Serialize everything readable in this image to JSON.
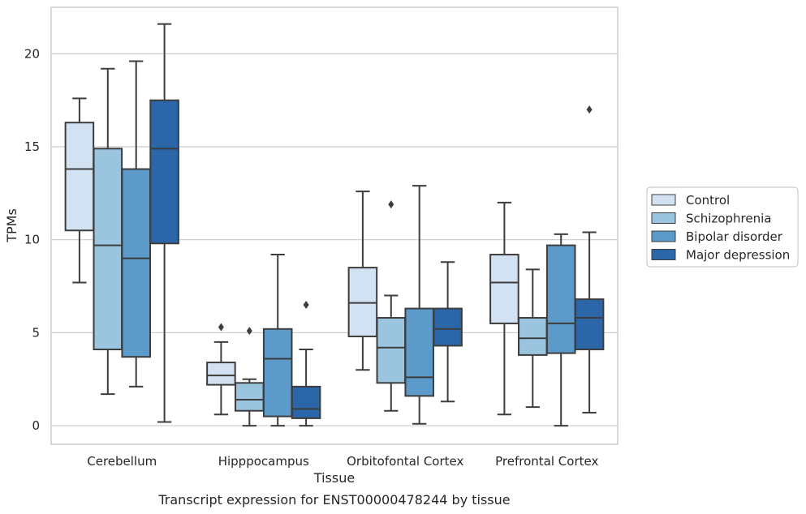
{
  "caption": "Transcript expression for ENST00000478244 by tissue",
  "chart_data": {
    "type": "box",
    "xlabel": "Tissue",
    "ylabel": "TPMs",
    "ylim": [
      -1,
      22.5
    ],
    "yticks": [
      0,
      5,
      10,
      15,
      20
    ],
    "grid": true,
    "legend_placement": "right",
    "categories": [
      "Cerebellum",
      "Hipppocampus",
      "Orbitofontal Cortex",
      "Prefrontal Cortex"
    ],
    "series": [
      {
        "name": "Control",
        "color": "#d2e2f2",
        "boxes": [
          {
            "whisker_low": 7.7,
            "q1": 10.5,
            "median": 13.8,
            "q3": 16.3,
            "whisker_high": 17.6,
            "outliers": []
          },
          {
            "whisker_low": 0.6,
            "q1": 2.2,
            "median": 2.7,
            "q3": 3.4,
            "whisker_high": 4.5,
            "outliers": [
              5.3
            ]
          },
          {
            "whisker_low": 3.0,
            "q1": 4.8,
            "median": 6.6,
            "q3": 8.5,
            "whisker_high": 12.6,
            "outliers": []
          },
          {
            "whisker_low": 0.6,
            "q1": 5.5,
            "median": 7.7,
            "q3": 9.2,
            "whisker_high": 12.0,
            "outliers": []
          }
        ]
      },
      {
        "name": "Schizophrenia",
        "color": "#9bc4df",
        "boxes": [
          {
            "whisker_low": 1.7,
            "q1": 4.1,
            "median": 9.7,
            "q3": 14.9,
            "whisker_high": 19.2,
            "outliers": []
          },
          {
            "whisker_low": 0.0,
            "q1": 0.8,
            "median": 1.4,
            "q3": 2.3,
            "whisker_high": 2.5,
            "outliers": [
              5.1
            ]
          },
          {
            "whisker_low": 0.8,
            "q1": 2.3,
            "median": 4.2,
            "q3": 5.8,
            "whisker_high": 7.0,
            "outliers": [
              11.9
            ]
          },
          {
            "whisker_low": 1.0,
            "q1": 3.8,
            "median": 4.7,
            "q3": 5.8,
            "whisker_high": 8.4,
            "outliers": []
          }
        ]
      },
      {
        "name": "Bipolar disorder",
        "color": "#5b9ac9",
        "boxes": [
          {
            "whisker_low": 2.1,
            "q1": 3.7,
            "median": 9.0,
            "q3": 13.8,
            "whisker_high": 19.6,
            "outliers": []
          },
          {
            "whisker_low": 0.0,
            "q1": 0.5,
            "median": 3.6,
            "q3": 5.2,
            "whisker_high": 9.2,
            "outliers": []
          },
          {
            "whisker_low": 0.1,
            "q1": 1.6,
            "median": 2.6,
            "q3": 6.3,
            "whisker_high": 12.9,
            "outliers": []
          },
          {
            "whisker_low": 0.0,
            "q1": 3.9,
            "median": 5.5,
            "q3": 9.7,
            "whisker_high": 10.3,
            "outliers": []
          }
        ]
      },
      {
        "name": "Major depression",
        "color": "#2a66a8",
        "boxes": [
          {
            "whisker_low": 0.2,
            "q1": 9.8,
            "median": 14.9,
            "q3": 17.5,
            "whisker_high": 21.6,
            "outliers": []
          },
          {
            "whisker_low": 0.0,
            "q1": 0.4,
            "median": 0.9,
            "q3": 2.1,
            "whisker_high": 4.1,
            "outliers": [
              6.5
            ]
          },
          {
            "whisker_low": 1.3,
            "q1": 4.3,
            "median": 5.2,
            "q3": 6.3,
            "whisker_high": 8.8,
            "outliers": []
          },
          {
            "whisker_low": 0.7,
            "q1": 4.1,
            "median": 5.8,
            "q3": 6.8,
            "whisker_high": 10.4,
            "outliers": [
              17.0
            ]
          }
        ]
      }
    ]
  }
}
